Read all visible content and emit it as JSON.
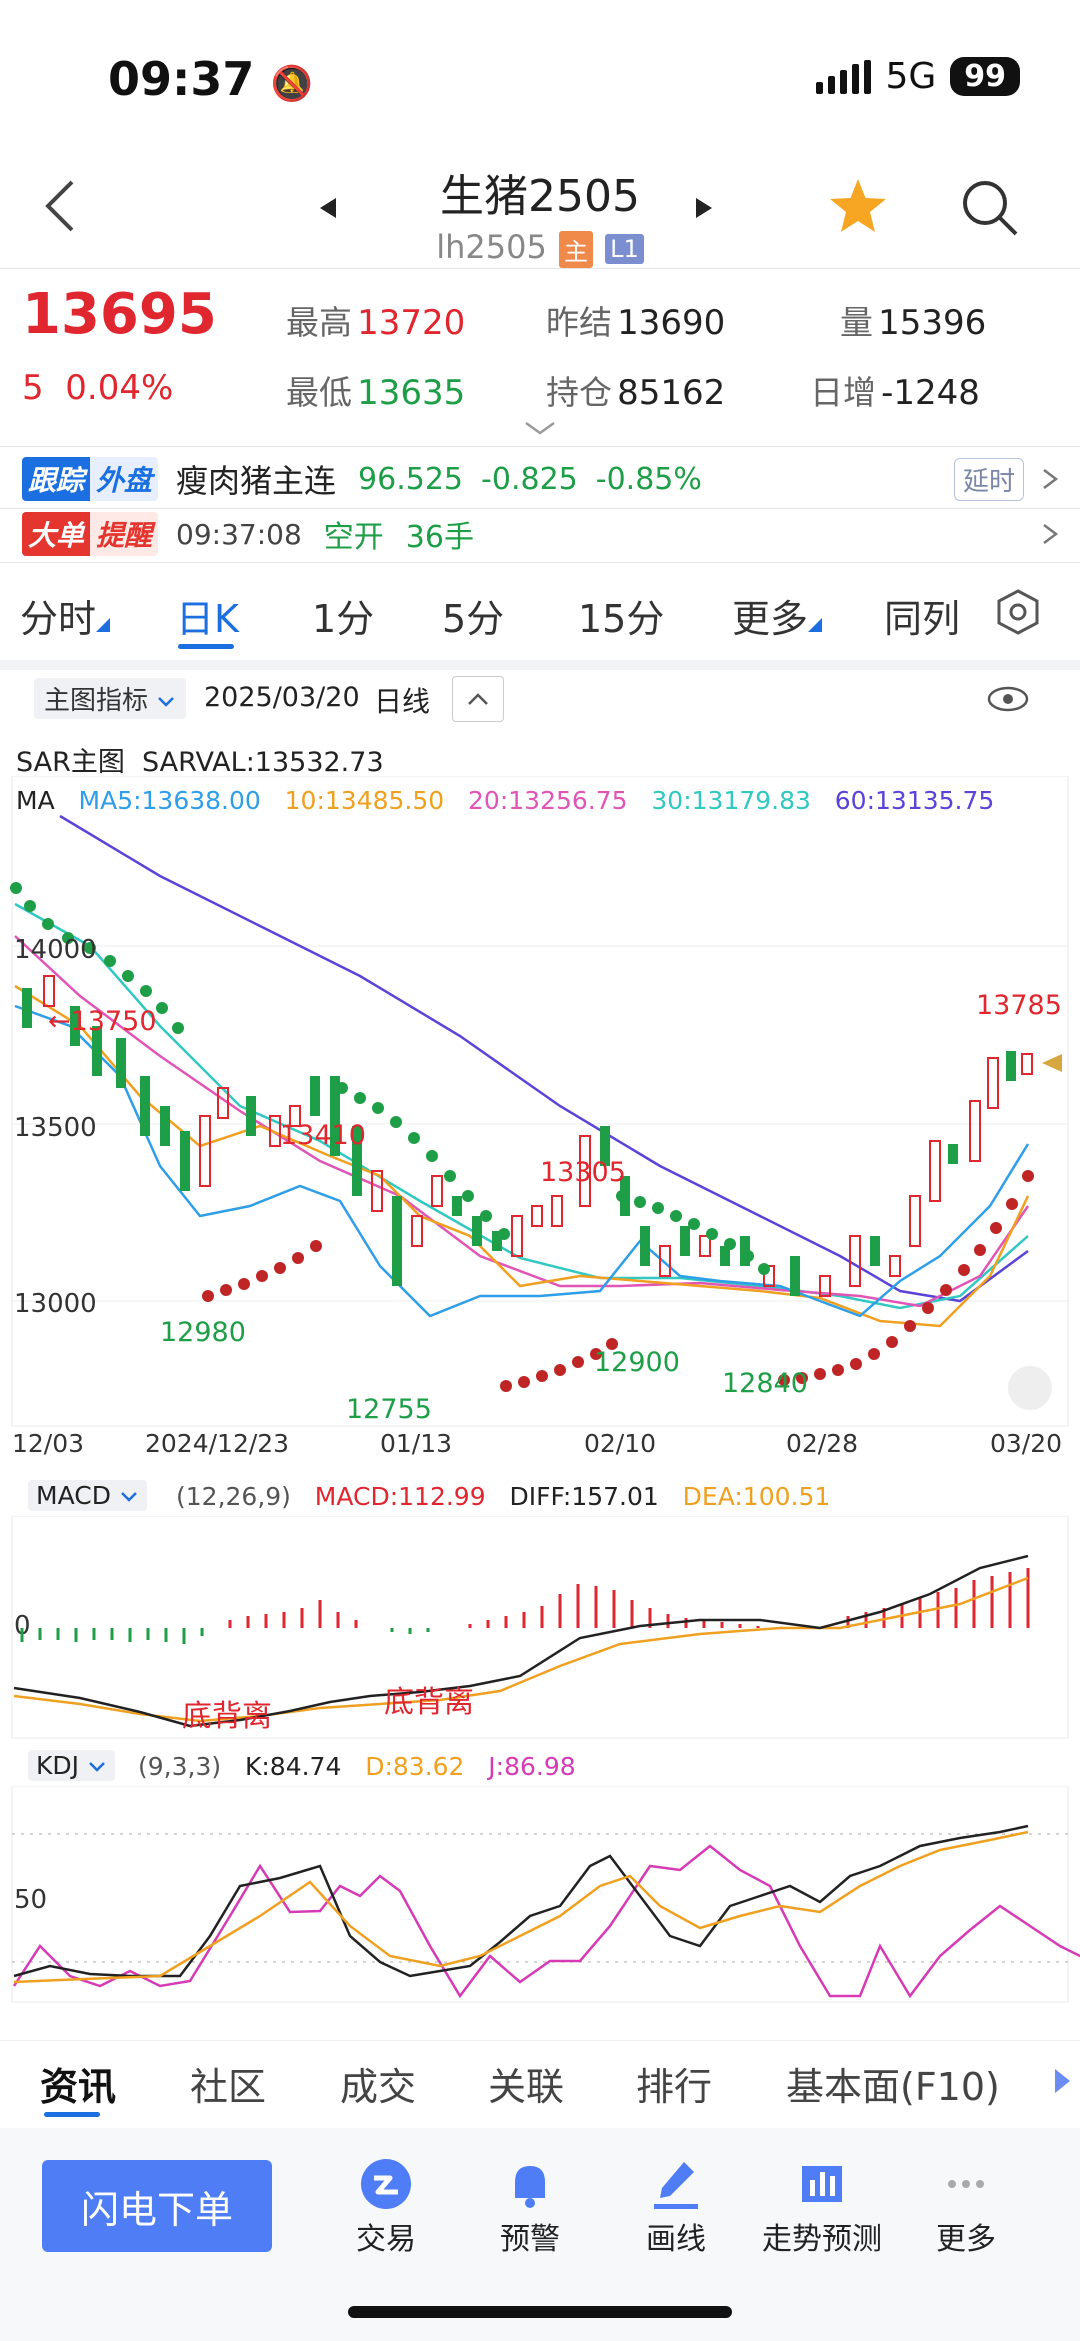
{
  "status": {
    "time": "09:37",
    "network": "5G",
    "battery": "99"
  },
  "header": {
    "title": "生猪2505",
    "code": "lh2505",
    "tag_main": "主",
    "tag_level": "L1"
  },
  "quote": {
    "price": "13695",
    "change": "5",
    "change_pct": "0.04%",
    "high_label": "最高",
    "high": "13720",
    "low_label": "最低",
    "low": "13635",
    "prev_label": "昨结",
    "prev": "13690",
    "oi_label": "持仓",
    "oi": "85162",
    "vol_label": "量",
    "vol": "15396",
    "day_inc_label": "日增",
    "day_inc": "-1248"
  },
  "track": {
    "badge1": "跟踪",
    "badge2": "外盘",
    "name": "瘦肉猪主连",
    "price": "96.525",
    "change": "-0.825",
    "pct": "-0.85%",
    "delay": "延时"
  },
  "alert": {
    "badge1": "大单",
    "badge2": "提醒",
    "time": "09:37:08",
    "type": "空开",
    "qty": "36手"
  },
  "tabs": [
    "分时",
    "日K",
    "1分",
    "5分",
    "15分",
    "更多",
    "同列"
  ],
  "chart_bar": {
    "indicator": "主图指标",
    "date": "2025/03/20",
    "period": "日线"
  },
  "sar": {
    "label": "SAR主图",
    "value": "SARVAL:13532.73"
  },
  "ma": {
    "label": "MA",
    "ma5": "MA5:13638.00",
    "ma10": "10:13485.50",
    "ma20": "20:13256.75",
    "ma30": "30:13179.83",
    "ma60": "60:13135.75"
  },
  "main_chart": {
    "y_ticks": [
      "14000",
      "13500",
      "13000"
    ],
    "x_ticks": [
      "12/03",
      "2024/12/23",
      "01/13",
      "02/10",
      "02/28",
      "03/20"
    ],
    "annotations": [
      "←13750",
      "13410",
      "12980",
      "12755",
      "13305",
      "12900",
      "12840",
      "13785"
    ]
  },
  "macd": {
    "label": "MACD",
    "params": "(12,26,9)",
    "macd": "MACD:112.99",
    "diff": "DIFF:157.01",
    "dea": "DEA:100.51",
    "zero": "0",
    "div1": "底背离",
    "div2": "底背离"
  },
  "kdj": {
    "label": "KDJ",
    "params": "(9,3,3)",
    "k": "K:84.74",
    "d": "D:83.62",
    "j": "J:86.98",
    "mid": "50"
  },
  "info_tabs": [
    "资讯",
    "社区",
    "成交",
    "关联",
    "排行",
    "基本面(F10)"
  ],
  "bottom": {
    "order": "闪电下单",
    "nav": [
      "交易",
      "预警",
      "画线",
      "走势预测",
      "更多"
    ]
  },
  "colors": {
    "up": "#e0262f",
    "down": "#1e9e47",
    "accent": "#1b6fe0",
    "ma5": "#2f9ee8",
    "ma10": "#f0a020",
    "ma20": "#e055b5",
    "ma30": "#30c8c0",
    "ma60": "#5a44d8"
  }
}
